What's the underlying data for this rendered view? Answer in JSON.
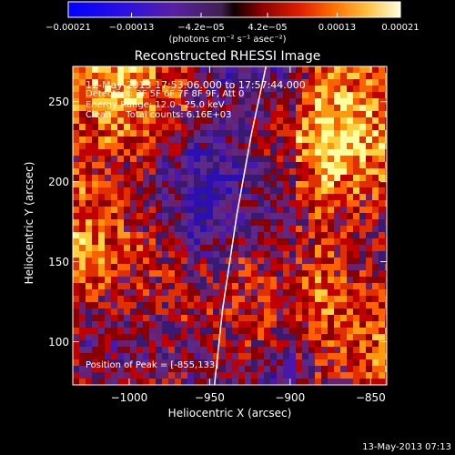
{
  "chart_data": {
    "type": "heatmap",
    "title": "Reconstructed RHESSI Image",
    "xlabel": "Heliocentric X (arcsec)",
    "ylabel": "Heliocentric Y (arcsec)",
    "xlim": [
      -1035,
      -840
    ],
    "ylim": [
      73,
      272
    ],
    "x_ticks": [
      "−1000",
      "−950",
      "−900",
      "−850"
    ],
    "x_tick_values": [
      -1000,
      -950,
      -900,
      -850
    ],
    "y_ticks": [
      "100",
      "150",
      "200",
      "250"
    ],
    "y_tick_values": [
      100,
      150,
      200,
      250
    ],
    "colorbar": {
      "ticks": [
        "−0.00021",
        "−0.00013",
        "−4.2e−05",
        "4.2e−05",
        "0.00013",
        "0.00021"
      ],
      "tick_values": [
        -0.00021,
        -0.00013,
        -4.2e-05,
        4.2e-05,
        0.00013,
        0.00021
      ],
      "range": [
        -0.00021,
        0.00021
      ],
      "units": "(photons cm⁻² s⁻¹ asec⁻²)",
      "colors": [
        "#0000ff",
        "#6000c0",
        "#5a2a8a",
        "#000000",
        "#8a0000",
        "#ff4000",
        "#ffa000",
        "#ffff80",
        "#ffffff"
      ]
    },
    "annotations": [
      "12-May-2013 17:53:06.000 to 17:57:44.000",
      "Detectors: 3F 5F 6F 7F 8F 9F, Att 0",
      "Energy Range: 12.0 - 25.0 keV",
      "Clean     Total counts: 6.16E+03"
    ],
    "peak_label": "Position of Peak = [-855,133]",
    "limb_curve": [
      [
        -947,
        73
      ],
      [
        -942,
        120
      ],
      [
        -933,
        180
      ],
      [
        -924,
        230
      ],
      [
        -915,
        272
      ]
    ]
  },
  "timestamp": "13-May-2013 07:13"
}
